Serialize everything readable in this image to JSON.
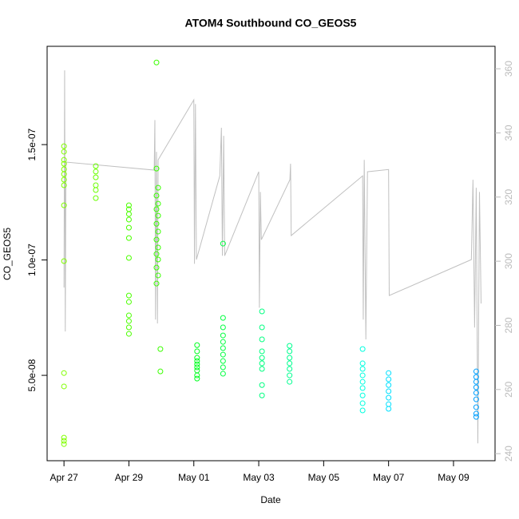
{
  "chart_data": {
    "type": "scatter",
    "title": "ATOM4 Southbound CO_GEOS5",
    "xlabel": "Date",
    "ylabel": "CO_GEOS5",
    "xlim": [
      -0.52,
      13.28
    ],
    "xticks": [
      {
        "value": 0,
        "label": "Apr 27"
      },
      {
        "value": 2,
        "label": "Apr 29"
      },
      {
        "value": 4,
        "label": "May 01"
      },
      {
        "value": 6,
        "label": "May 03"
      },
      {
        "value": 8,
        "label": "May 05"
      },
      {
        "value": 10,
        "label": "May 07"
      },
      {
        "value": 12,
        "label": "May 09"
      }
    ],
    "ylim": [
      1.3e-08,
      1.926e-07
    ],
    "yticks": [
      {
        "value": 5e-08,
        "label": "5.0e-08"
      },
      {
        "value": 1e-07,
        "label": "1.0e-07"
      },
      {
        "value": 1.5e-07,
        "label": "1.5e-07"
      }
    ],
    "y2lim": [
      237.8,
      367
    ],
    "y2ticks": [
      240,
      260,
      280,
      300,
      320,
      340,
      360
    ],
    "y2color": "#bbbbbb",
    "series": [
      {
        "color": "#80ff00",
        "x": [
          0,
          0,
          0,
          0,
          0,
          0,
          0,
          0,
          0,
          0,
          0,
          0,
          0,
          0,
          0
        ],
        "values": [
          1.493e-07,
          1.469e-07,
          1.434e-07,
          1.417e-07,
          1.393e-07,
          1.372e-07,
          1.348e-07,
          1.324e-07,
          1.237e-07,
          9.95e-08,
          5.1e-08,
          4.52e-08,
          2.3e-08,
          2.16e-08,
          2.02e-08
        ]
      },
      {
        "color": "#6aff00",
        "x": [
          0.98,
          0.98,
          0.98,
          0.98,
          0.98,
          0.98
        ],
        "values": [
          1.407e-07,
          1.383e-07,
          1.358e-07,
          1.324e-07,
          1.303e-07,
          1.268e-07
        ]
      },
      {
        "color": "#4cff00",
        "x": [
          2,
          2,
          2,
          2,
          2,
          2,
          2,
          2,
          2,
          2,
          2,
          2,
          2
        ],
        "values": [
          1.237e-07,
          1.22e-07,
          1.199e-07,
          1.175e-07,
          1.14e-07,
          1.095e-07,
          1.009e-07,
          8.46e-08,
          8.18e-08,
          7.6e-08,
          7.35e-08,
          7.08e-08,
          6.8e-08
        ]
      },
      {
        "color": "#3aff00",
        "x": [
          2.85,
          2.85,
          2.9,
          2.85,
          2.9,
          2.85,
          2.9,
          2.85,
          2.9,
          2.85,
          2.9,
          2.85,
          2.9,
          2.85,
          2.9,
          2.85,
          2.97,
          2.97
        ],
        "values": [
          1.856e-07,
          1.396e-07,
          1.313e-07,
          1.279e-07,
          1.244e-07,
          1.22e-07,
          1.192e-07,
          1.157e-07,
          1.123e-07,
          1.088e-07,
          1.054e-07,
          1.026e-07,
          1.002e-07,
          9.67e-08,
          9.33e-08,
          8.98e-08,
          6.14e-08,
          5.17e-08
        ]
      },
      {
        "color": "#00ff20",
        "x": [
          4.1,
          4.1,
          4.1,
          4.1,
          4.1,
          4.1,
          4.1,
          4.1,
          4.1
        ],
        "values": [
          6.31e-08,
          6.04e-08,
          5.76e-08,
          5.62e-08,
          5.48e-08,
          5.35e-08,
          5.21e-08,
          5e-08,
          4.86e-08
        ]
      },
      {
        "color": "#00ff40",
        "x": [
          4.9,
          4.9,
          4.9,
          4.9,
          4.9,
          4.9,
          4.9,
          4.9,
          4.9,
          4.9
        ],
        "values": [
          1.071e-07,
          7.49e-08,
          7.08e-08,
          6.73e-08,
          6.45e-08,
          6.18e-08,
          5.9e-08,
          5.62e-08,
          5.35e-08,
          5.07e-08
        ]
      },
      {
        "color": "#00ff80",
        "x": [
          6.1,
          6.1,
          6.1,
          6.1,
          6.1,
          6.1,
          6.1,
          6.1,
          6.1
        ],
        "values": [
          7.77e-08,
          7.08e-08,
          6.56e-08,
          6.04e-08,
          5.76e-08,
          5.52e-08,
          5.28e-08,
          4.58e-08,
          4.13e-08
        ]
      },
      {
        "color": "#00ff90",
        "x": [
          6.95,
          6.95,
          6.95,
          6.95,
          6.95,
          6.95,
          6.95
        ],
        "values": [
          6.28e-08,
          6.04e-08,
          5.76e-08,
          5.52e-08,
          5.28e-08,
          5e-08,
          4.72e-08
        ]
      },
      {
        "color": "#00ffe0",
        "x": [
          9.2,
          9.2,
          9.2,
          9.2,
          9.2,
          9.2,
          9.2,
          9.2,
          9.2
        ],
        "values": [
          6.14e-08,
          5.52e-08,
          5.28e-08,
          5e-08,
          4.72e-08,
          4.45e-08,
          4.13e-08,
          3.79e-08,
          3.48e-08
        ]
      },
      {
        "color": "#00e0ff",
        "x": [
          10,
          10,
          10,
          10,
          10,
          10,
          10
        ],
        "values": [
          5.1e-08,
          4.83e-08,
          4.58e-08,
          4.31e-08,
          4.03e-08,
          3.75e-08,
          3.55e-08
        ]
      },
      {
        "color": "#00a0ff",
        "x": [
          12.7,
          12.7,
          12.7,
          12.7,
          12.7,
          12.7,
          12.7,
          12.7,
          12.7
        ],
        "values": [
          5.17e-08,
          4.93e-08,
          4.72e-08,
          4.48e-08,
          4.24e-08,
          3.96e-08,
          3.62e-08,
          3.34e-08,
          3.2e-08
        ]
      },
      {
        "type": "line",
        "axis": "y2",
        "color": "#c0c0c0",
        "x": [
          0,
          0.02,
          0.04,
          0.06,
          2.78,
          2.8,
          2.82,
          2.85,
          2.88,
          2.9,
          4.0,
          4.02,
          4.05,
          4.08,
          4.8,
          4.85,
          4.88,
          4.92,
          4.95,
          6.0,
          6.02,
          6.05,
          6.08,
          6.96,
          6.98,
          7.0,
          9.2,
          9.22,
          9.25,
          9.3,
          9.35,
          10.0,
          10.02,
          12.55,
          12.6,
          12.65,
          12.7,
          12.75,
          12.8,
          12.85
        ],
        "values": [
          291.8,
          359.5,
          278.1,
          330.9,
          328.4,
          344.0,
          281.8,
          334.1,
          280.6,
          331.6,
          350.3,
          299.2,
          349.0,
          300.5,
          326.6,
          341.6,
          301.7,
          339.1,
          301.7,
          327.9,
          285.5,
          321.6,
          306.7,
          325.4,
          330.4,
          308.0,
          326.6,
          281.8,
          331.6,
          275.6,
          327.9,
          328.6,
          289.3,
          300.5,
          325.4,
          279.3,
          322.9,
          243.2,
          321.6,
          286.8
        ]
      }
    ]
  }
}
